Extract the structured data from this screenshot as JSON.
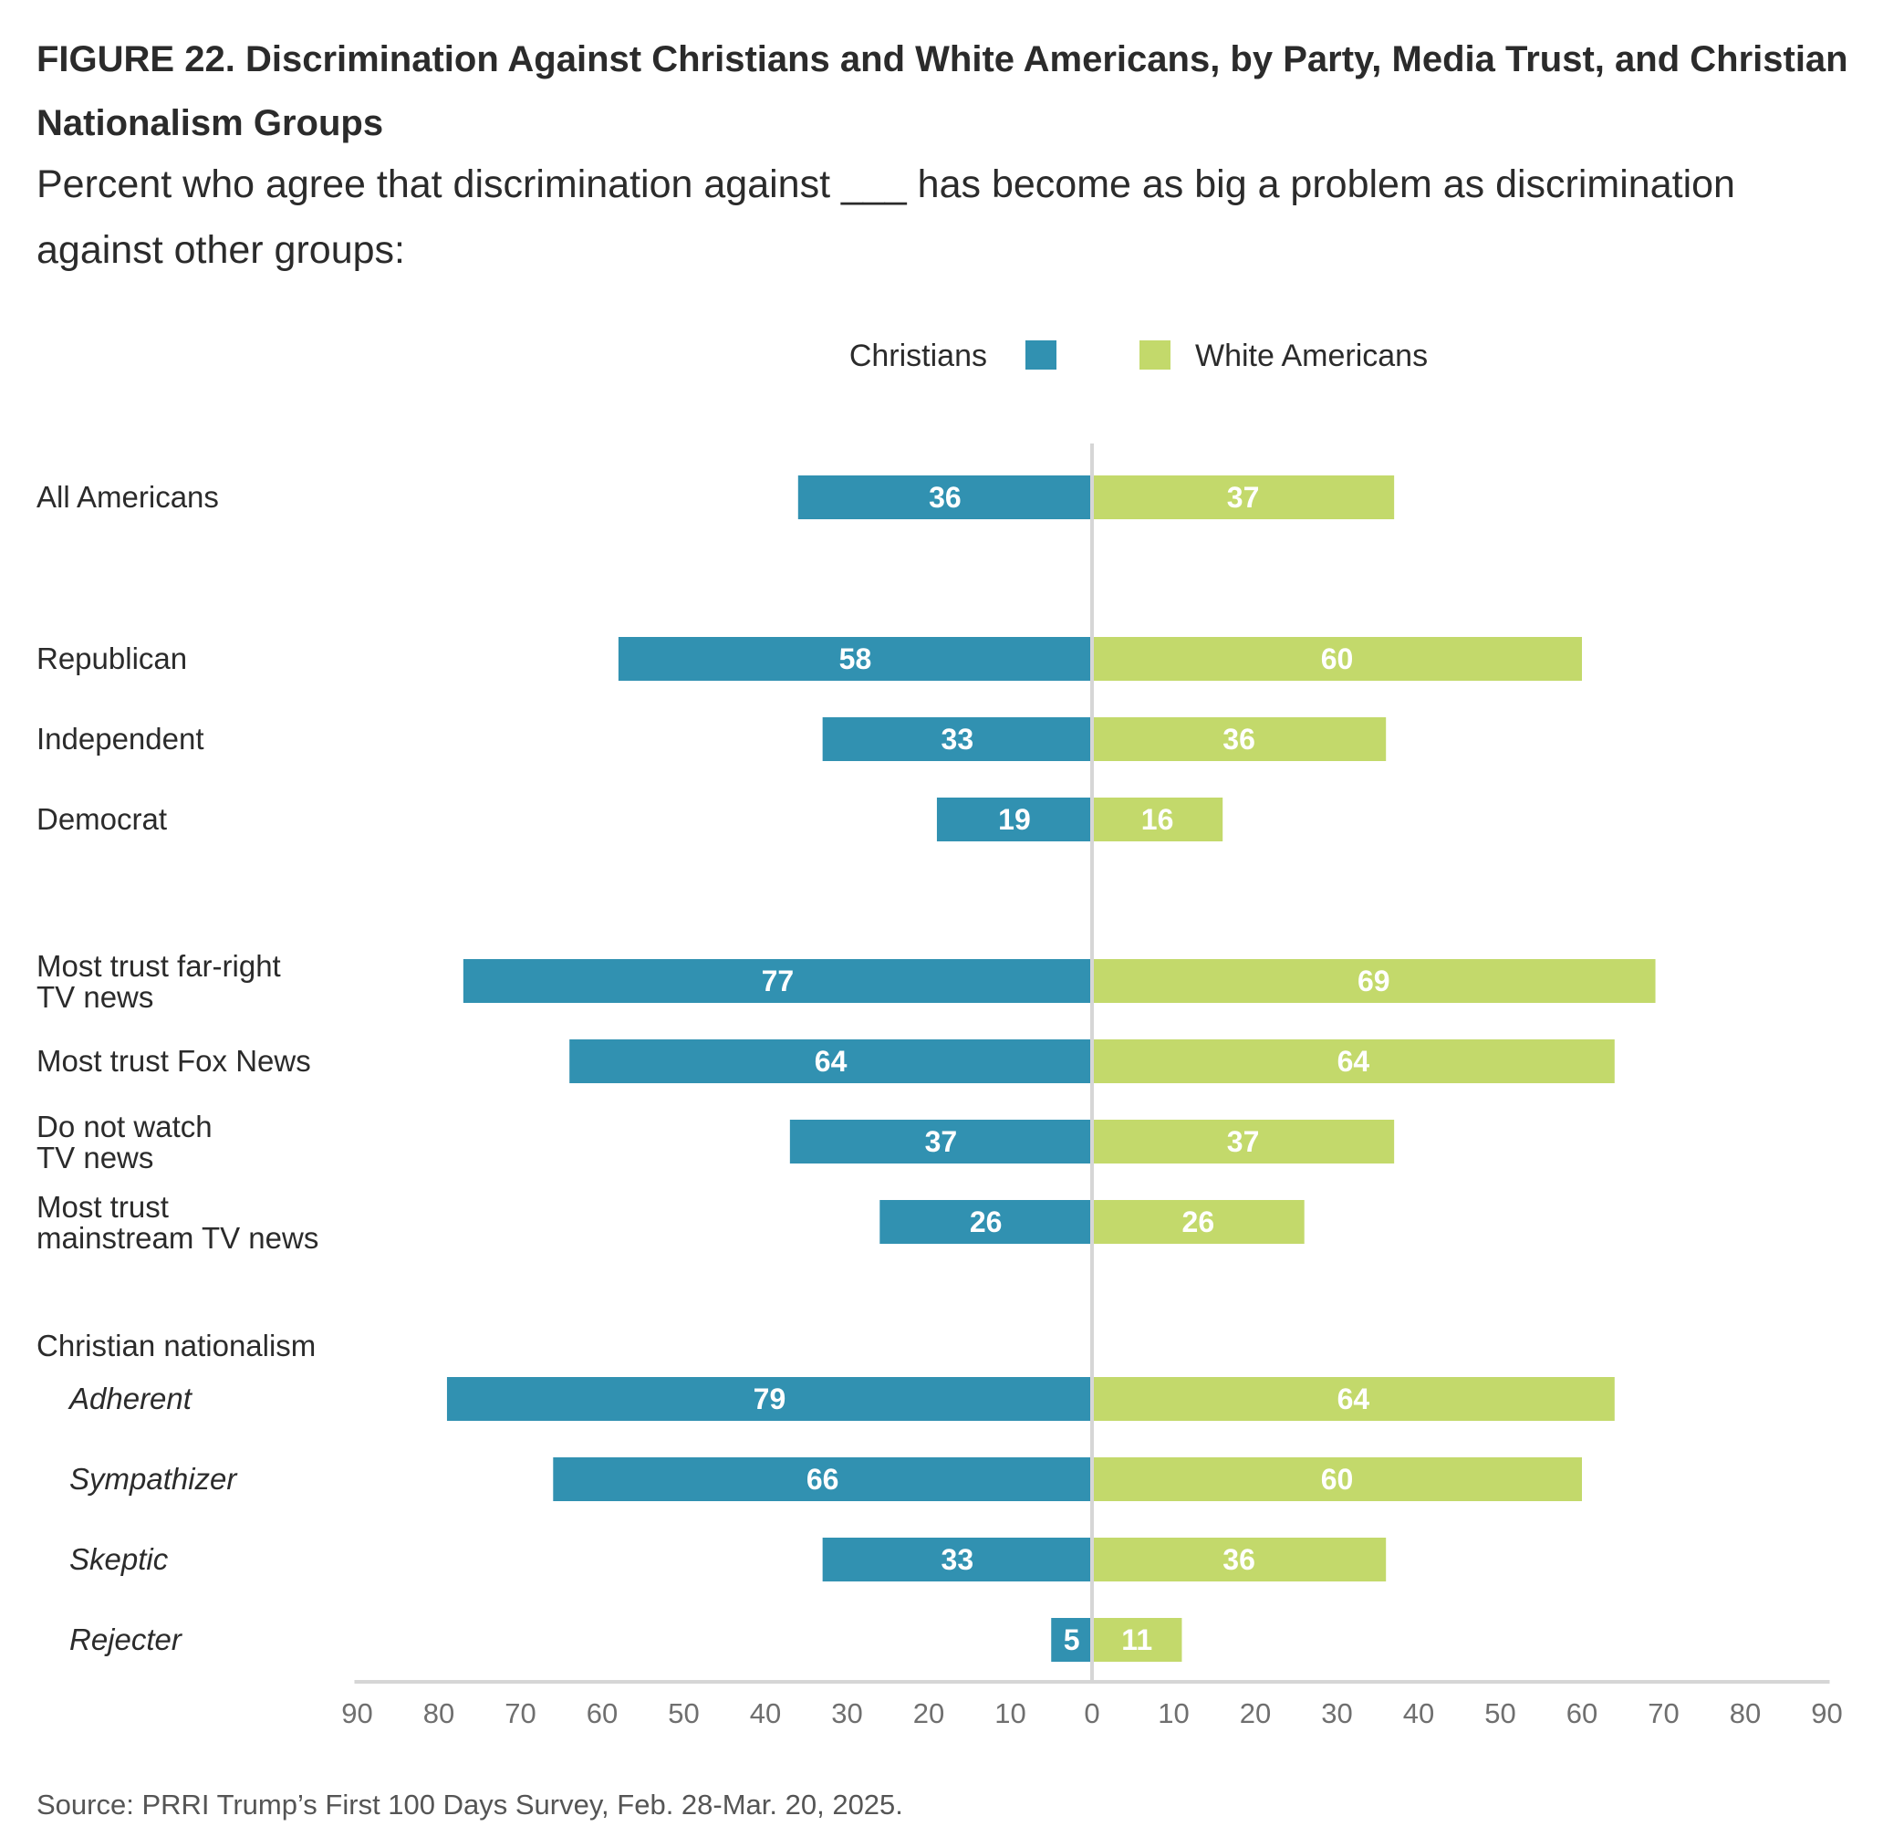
{
  "title": "FIGURE 22.  Discrimination Against Christians and White Americans, by Party, Media Trust, and Christian Nationalism Groups",
  "subtitle": "Percent who agree that discrimination against ___ has become as big a problem as discrimination against other groups:",
  "source": "Source: PRRI Trump’s First 100 Days Survey, Feb. 28-Mar. 20, 2025.",
  "colors": {
    "christians": "#3191b1",
    "white_americans": "#c3d96b",
    "axis": "#d6d6d6"
  },
  "chart_data": {
    "type": "bar",
    "orientation": "horizontal-diverging",
    "legend": {
      "placement": "top-center",
      "entries": [
        "Christians",
        "White Americans"
      ]
    },
    "x_ticks": [
      "90",
      "80",
      "70",
      "60",
      "50",
      "40",
      "30",
      "20",
      "10",
      "0",
      "10",
      "20",
      "30",
      "40",
      "50",
      "60",
      "70",
      "80",
      "90"
    ],
    "xlim": [
      -90,
      90
    ],
    "grid": false,
    "group_headers": [
      "Christian nationalism"
    ],
    "categories": [
      [
        "All Americans"
      ],
      [
        "Republican"
      ],
      [
        "Independent"
      ],
      [
        "Democrat"
      ],
      [
        "Most trust far-right",
        "TV news"
      ],
      [
        "Most trust Fox News"
      ],
      [
        "Do not watch",
        "TV news"
      ],
      [
        "Most trust",
        "mainstream TV news"
      ],
      [
        "Adherent"
      ],
      [
        "Sympathizer"
      ],
      [
        "Skeptic"
      ],
      [
        "Rejecter"
      ]
    ],
    "italic_categories": [
      "Adherent",
      "Sympathizer",
      "Skeptic",
      "Rejecter"
    ],
    "series": [
      {
        "name": "Christians",
        "values": [
          36,
          58,
          33,
          19,
          77,
          64,
          37,
          26,
          79,
          66,
          33,
          5
        ]
      },
      {
        "name": "White Americans",
        "values": [
          37,
          60,
          36,
          16,
          69,
          64,
          37,
          26,
          64,
          60,
          36,
          11
        ]
      }
    ]
  }
}
